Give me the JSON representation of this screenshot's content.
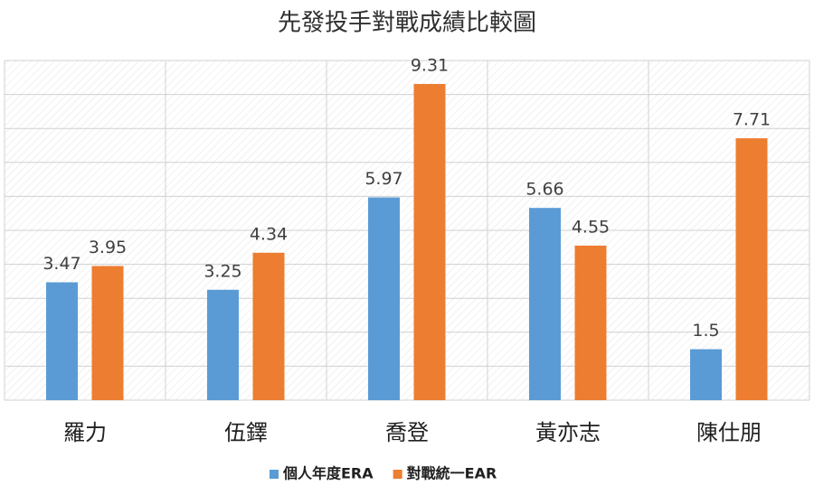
{
  "chart_data": {
    "type": "bar",
    "title": "先發投手對戰成績比較圖",
    "categories": [
      "羅力",
      "伍鐸",
      "喬登",
      "黃亦志",
      "陳仕朋"
    ],
    "series": [
      {
        "name": "個人年度ERA",
        "color": "#5b9bd5",
        "values": [
          3.47,
          3.25,
          5.97,
          5.66,
          1.5
        ]
      },
      {
        "name": "對戰統一EAR",
        "color": "#ed7d31",
        "values": [
          3.95,
          4.34,
          9.31,
          4.55,
          7.71
        ]
      }
    ],
    "ylim": [
      0,
      10
    ],
    "yticks": [
      0,
      1,
      2,
      3,
      4,
      5,
      6,
      7,
      8,
      9,
      10
    ],
    "grid": true,
    "legend": "bottom"
  }
}
